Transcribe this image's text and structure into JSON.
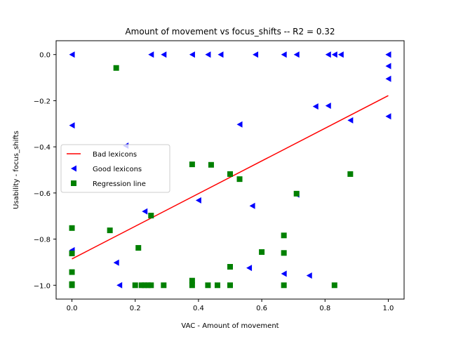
{
  "chart_data": {
    "type": "scatter",
    "title": "Amount of movement  vs  focus_shifts -- R2 = 0.32",
    "xlabel": "VAC - Amount of movement",
    "ylabel": "Usability - focus_shifts",
    "xlim": [
      -0.05,
      1.05
    ],
    "ylim": [
      -1.06,
      0.06
    ],
    "xticks": [
      "0.0",
      "0.2",
      "0.4",
      "0.6",
      "0.8",
      "1.0"
    ],
    "yticks": [
      "0.0",
      "−0.2",
      "−0.4",
      "−0.6",
      "−0.8",
      "−1.0"
    ],
    "grid": false,
    "legend_position": "center-left",
    "legend": [
      {
        "label": "Bad lexicons",
        "marker": "line",
        "color": "#ff0000"
      },
      {
        "label": "Good lexicons",
        "marker": "triangle-left",
        "color": "#0000ff"
      },
      {
        "label": "Regression line",
        "marker": "square",
        "color": "#008000"
      }
    ],
    "series": [
      {
        "marker": "line",
        "color": "#ff0000",
        "points": [
          [
            0.0,
            -0.886
          ],
          [
            1.0,
            -0.178
          ]
        ]
      },
      {
        "marker": "triangle-left",
        "color": "#0000ff",
        "points": [
          [
            0.0,
            0.0
          ],
          [
            0.25,
            0.0
          ],
          [
            0.29,
            0.0
          ],
          [
            0.38,
            0.0
          ],
          [
            0.43,
            0.0
          ],
          [
            0.47,
            0.0
          ],
          [
            0.58,
            0.0
          ],
          [
            0.67,
            0.0
          ],
          [
            0.71,
            0.0
          ],
          [
            0.81,
            0.0
          ],
          [
            0.83,
            0.0
          ],
          [
            0.85,
            0.0
          ],
          [
            1.0,
            0.0
          ],
          [
            1.0,
            0.0
          ],
          [
            1.0,
            -0.05
          ],
          [
            1.0,
            -0.105
          ],
          [
            1.0,
            -0.268
          ],
          [
            0.0,
            -0.307
          ],
          [
            0.17,
            -0.395
          ],
          [
            0.53,
            -0.303
          ],
          [
            0.77,
            -0.225
          ],
          [
            0.81,
            -0.222
          ],
          [
            0.88,
            -0.285
          ],
          [
            0.23,
            -0.68
          ],
          [
            0.4,
            -0.632
          ],
          [
            0.57,
            -0.656
          ],
          [
            0.71,
            -0.607
          ],
          [
            0.0,
            -0.848
          ],
          [
            0.14,
            -0.902
          ],
          [
            0.56,
            -0.925
          ],
          [
            0.67,
            -0.95
          ],
          [
            0.75,
            -0.958
          ],
          [
            0.15,
            -1.0
          ]
        ]
      },
      {
        "marker": "square",
        "color": "#008000",
        "points": [
          [
            0.14,
            -0.058
          ],
          [
            0.0,
            -0.752
          ],
          [
            0.0,
            -0.862
          ],
          [
            0.0,
            -0.943
          ],
          [
            0.0,
            -0.995
          ],
          [
            0.0,
            -1.0
          ],
          [
            0.12,
            -0.762
          ],
          [
            0.21,
            -0.838
          ],
          [
            0.2,
            -1.0
          ],
          [
            0.22,
            -1.0
          ],
          [
            0.23,
            -1.0
          ],
          [
            0.24,
            -1.0
          ],
          [
            0.25,
            -1.0
          ],
          [
            0.25,
            -0.698
          ],
          [
            0.29,
            -1.0
          ],
          [
            0.38,
            -0.476
          ],
          [
            0.38,
            -0.98
          ],
          [
            0.38,
            -1.0
          ],
          [
            0.43,
            -1.0
          ],
          [
            0.44,
            -0.478
          ],
          [
            0.46,
            -1.0
          ],
          [
            0.5,
            -0.518
          ],
          [
            0.5,
            -0.92
          ],
          [
            0.5,
            -1.0
          ],
          [
            0.53,
            -0.54
          ],
          [
            0.6,
            -0.856
          ],
          [
            0.67,
            -0.784
          ],
          [
            0.67,
            -0.86
          ],
          [
            0.67,
            -1.0
          ],
          [
            0.71,
            -0.603
          ],
          [
            0.83,
            -1.0
          ],
          [
            0.88,
            -0.518
          ]
        ]
      }
    ]
  }
}
